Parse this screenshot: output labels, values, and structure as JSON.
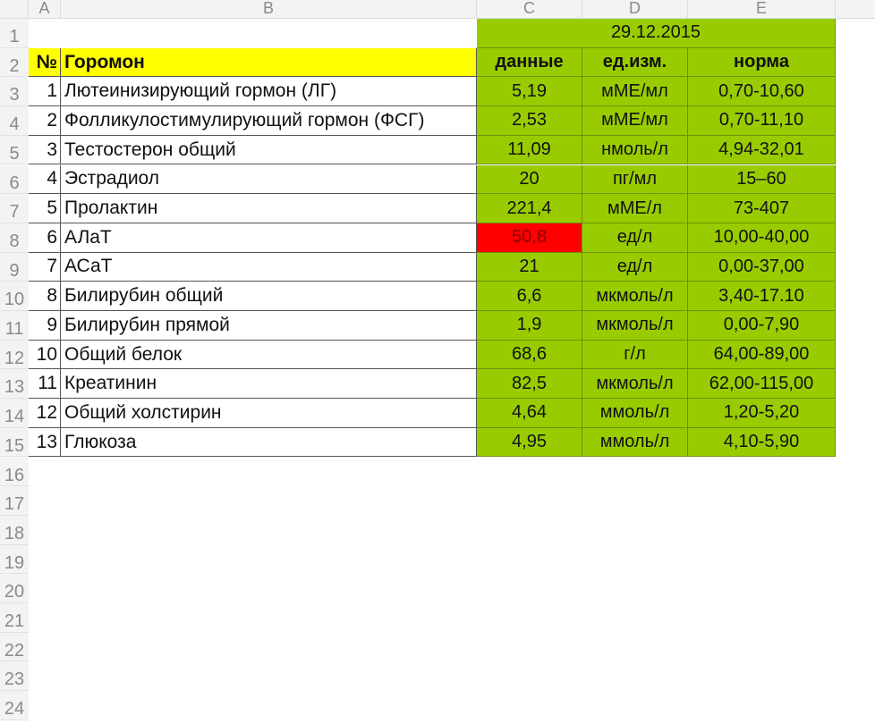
{
  "columns": [
    "A",
    "B",
    "C",
    "D",
    "E"
  ],
  "date": "29.12.2015",
  "header": {
    "no": "№",
    "name": "Горомон",
    "value": "данные",
    "unit": "ед.изм.",
    "norm": "норма"
  },
  "colors": {
    "green": "#99cc00",
    "yellow": "#ffff00",
    "red": "#ff0000"
  },
  "rows": [
    {
      "no": "1",
      "name": "Лютеинизирующий гормон (ЛГ)",
      "value": "5,19",
      "unit": "мМЕ/мл",
      "norm": "0,70-10,60"
    },
    {
      "no": "2",
      "name": "Фолликулостимулирующий гормон (ФСГ)",
      "value": "2,53",
      "unit": "мМЕ/мл",
      "norm": "0,70-11,10"
    },
    {
      "no": "3",
      "name": "Тестостерон общий",
      "value": "11,09",
      "unit": "нмоль/л",
      "norm": "4,94-32,01"
    },
    {
      "no": "4",
      "name": "Эстрадиол",
      "value": "20",
      "unit": "пг/мл",
      "norm": "15–60"
    },
    {
      "no": "5",
      "name": "Пролактин",
      "value": "221,4",
      "unit": "мМЕ/л",
      "norm": "73-407"
    },
    {
      "no": "6",
      "name": "АЛаТ",
      "value": "50,8",
      "unit": "ед/л",
      "norm": "10,00-40,00",
      "flag": "high"
    },
    {
      "no": "7",
      "name": "АСаТ",
      "value": "21",
      "unit": "ед/л",
      "norm": "0,00-37,00"
    },
    {
      "no": "8",
      "name": "Билирубин общий",
      "value": "6,6",
      "unit": "мкмоль/л",
      "norm": "3,40-17.10"
    },
    {
      "no": "9",
      "name": "Билирубин прямой",
      "value": "1,9",
      "unit": "мкмоль/л",
      "norm": "0,00-7,90"
    },
    {
      "no": "10",
      "name": "Общий белок",
      "value": "68,6",
      "unit": "г/л",
      "norm": "64,00-89,00"
    },
    {
      "no": "11",
      "name": "Креатинин",
      "value": "82,5",
      "unit": "мкмоль/л",
      "norm": "62,00-115,00"
    },
    {
      "no": "12",
      "name": "Общий холстирин",
      "value": "4,64",
      "unit": "ммоль/л",
      "norm": "1,20-5,20"
    },
    {
      "no": "13",
      "name": "Глюкоза",
      "value": "4,95",
      "unit": "ммоль/л",
      "norm": "4,10-5,90"
    }
  ],
  "row_numbers": [
    "1",
    "2",
    "3",
    "4",
    "5",
    "6",
    "7",
    "8",
    "9",
    "10",
    "11",
    "12",
    "13",
    "14",
    "15",
    "16",
    "17",
    "18",
    "19",
    "20",
    "21",
    "22",
    "23",
    "24"
  ]
}
